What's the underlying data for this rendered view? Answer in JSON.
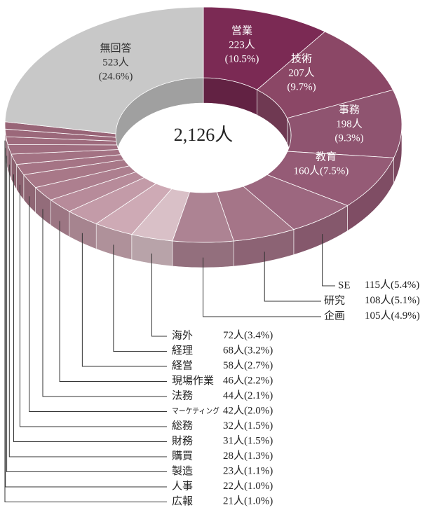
{
  "chart_data": {
    "type": "pie",
    "total_label": "2,126人",
    "categories": [
      "営業",
      "技術",
      "事務",
      "教育",
      "SE",
      "研究",
      "企画",
      "海外",
      "経理",
      "経営",
      "現場作業",
      "法務",
      "マーケティング",
      "総務",
      "財務",
      "購買",
      "製造",
      "人事",
      "広報",
      "無回答"
    ],
    "values": [
      223,
      207,
      198,
      160,
      115,
      108,
      105,
      72,
      68,
      58,
      46,
      44,
      42,
      32,
      31,
      28,
      23,
      22,
      21,
      523
    ],
    "value_labels": [
      "223人",
      "207人",
      "198人",
      "160人",
      "115人",
      "108人",
      "105人",
      "72人",
      "68人",
      "58人",
      "46人",
      "44人",
      "42人",
      "32人",
      "31人",
      "28人",
      "23人",
      "22人",
      "21人",
      "523人"
    ],
    "percent_labels": [
      "(10.5%)",
      "(9.7%)",
      "(9.3%)",
      "(7.5%)",
      "(5.4%)",
      "(5.1%)",
      "(4.9%)",
      "(3.4%)",
      "(3.2%)",
      "(2.7%)",
      "(2.2%)",
      "(2.1%)",
      "(2.0%)",
      "(1.5%)",
      "(1.5%)",
      "(1.3%)",
      "(1.1%)",
      "(1.0%)",
      "(1.0%)",
      "(24.6%)"
    ],
    "colors": [
      "#7b2a54",
      "#8b4766",
      "#8f5470",
      "#955b76",
      "#9c677f",
      "#a57588",
      "#ad8393",
      "#d9c0c7",
      "#ceaab5",
      "#c39ba8",
      "#b78b9a",
      "#ad7f8f",
      "#a87888",
      "#a57485",
      "#a37283",
      "#a06e80",
      "#9e6b7d",
      "#9b687a",
      "#986577",
      "#c8c8c8"
    ]
  }
}
